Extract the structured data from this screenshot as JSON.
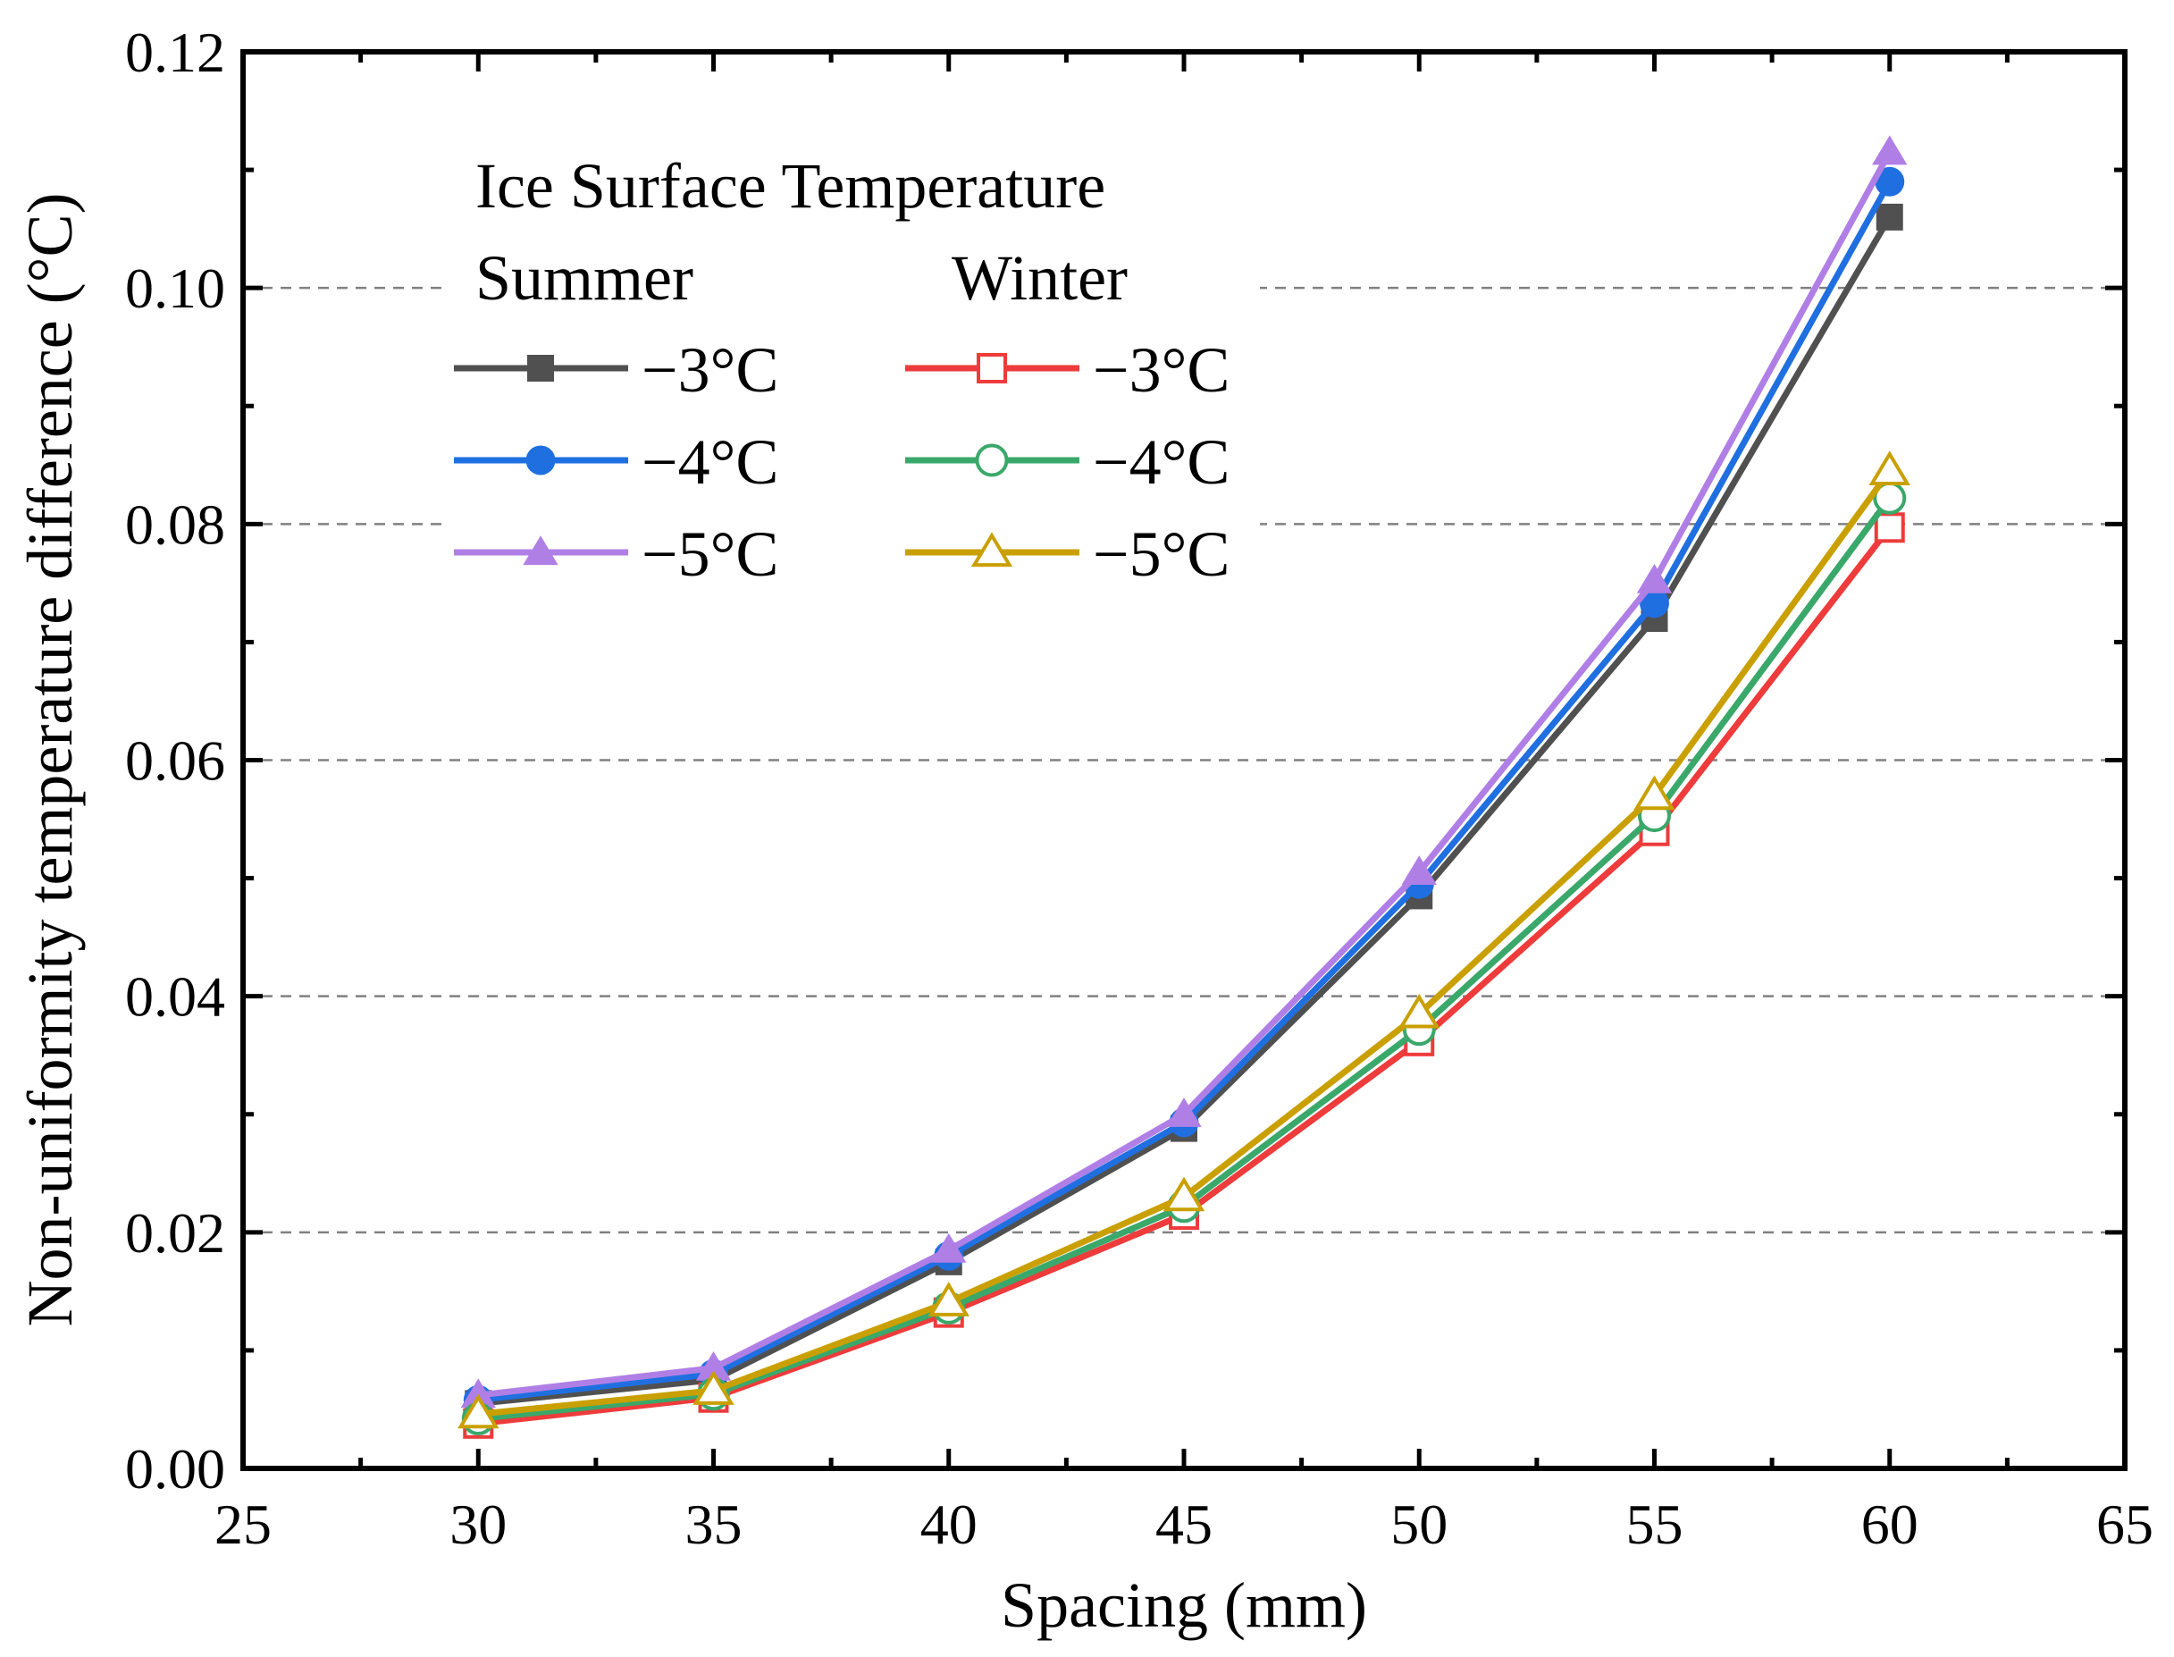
{
  "chart_data": {
    "type": "line",
    "xlabel": "Spacing (mm)",
    "ylabel": "Non-uniformity temperature difference  (°C)",
    "xlim": [
      25,
      65
    ],
    "ylim": [
      0,
      0.12
    ],
    "xticks": [
      25,
      30,
      35,
      40,
      45,
      50,
      55,
      60,
      65
    ],
    "xtick_labels": [
      "25",
      "30",
      "35",
      "40",
      "45",
      "50",
      "55",
      "60",
      "65"
    ],
    "yticks": [
      0,
      0.02,
      0.04,
      0.06,
      0.08,
      0.1,
      0.12
    ],
    "ytick_labels": [
      "0.00",
      "0.02",
      "0.04",
      "0.06",
      "0.08",
      "0.10",
      "0.12"
    ],
    "grid_y": [
      0.02,
      0.04,
      0.06,
      0.08,
      0.1
    ],
    "legend": {
      "title": "Ice Surface Temperature",
      "group_labels": [
        "Summer",
        "Winter"
      ],
      "placement": "top-left"
    },
    "x": [
      30,
      35,
      40,
      45,
      50,
      55,
      60
    ],
    "series": [
      {
        "name": "−3°C",
        "group": "Summer",
        "marker": "square",
        "filled": true,
        "color": "#505050",
        "values": [
          0.0055,
          0.0075,
          0.0175,
          0.0288,
          0.0485,
          0.072,
          0.106
        ]
      },
      {
        "name": "−4°C",
        "group": "Summer",
        "marker": "circle",
        "filled": true,
        "color": "#1f6fe0",
        "values": [
          0.0058,
          0.008,
          0.018,
          0.0293,
          0.0495,
          0.0733,
          0.109
        ]
      },
      {
        "name": "−5°C",
        "group": "Summer",
        "marker": "triangle",
        "filled": true,
        "color": "#b07fe6",
        "values": [
          0.0062,
          0.0085,
          0.0185,
          0.03,
          0.0505,
          0.0752,
          0.1115
        ]
      },
      {
        "name": "−3°C",
        "group": "Winter",
        "marker": "square",
        "filled": false,
        "color": "#ee3b3b",
        "values": [
          0.0038,
          0.006,
          0.0132,
          0.0215,
          0.0362,
          0.054,
          0.0797
        ]
      },
      {
        "name": "−4°C",
        "group": "Winter",
        "marker": "circle",
        "filled": false,
        "color": "#3aa86a",
        "values": [
          0.0042,
          0.0063,
          0.0136,
          0.0222,
          0.0372,
          0.0553,
          0.0822
        ]
      },
      {
        "name": "−5°C",
        "group": "Winter",
        "marker": "triangle",
        "filled": false,
        "color": "#c9a000",
        "values": [
          0.0046,
          0.0066,
          0.0141,
          0.023,
          0.0385,
          0.057,
          0.0845
        ]
      }
    ]
  }
}
